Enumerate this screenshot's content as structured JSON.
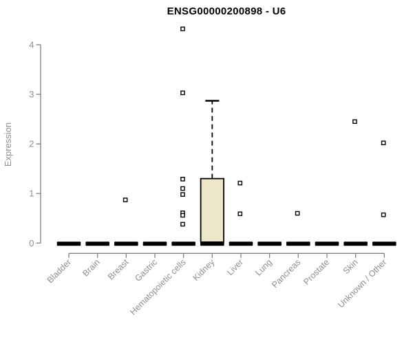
{
  "title": "ENSG00000200898 - U6",
  "colors": {
    "background": "#ffffff",
    "title_text": "#000000",
    "axis_line": "#808080",
    "label_text": "#8e8e8e",
    "box_fill": "#ece7c8",
    "box_stroke": "#000000",
    "median_bar": "#000000",
    "marker_stroke": "#000000",
    "marker_fill": "#ffffff"
  },
  "chart_data": {
    "type": "boxplot",
    "title": "ENSG00000200898 - U6",
    "xlabel": "",
    "ylabel": "Expression",
    "ylim": [
      0,
      4.4
    ],
    "yticks": [
      0,
      1,
      2,
      3,
      4
    ],
    "grid": false,
    "legend": "none",
    "marker": "open-square",
    "categories": [
      "Bladder",
      "Brain",
      "Breast",
      "Gastric",
      "Hematopoietic cells",
      "Kidney",
      "Liver",
      "Lung",
      "Pancreas",
      "Prostate",
      "Skin",
      "Unknown / Other"
    ],
    "boxes": [
      {
        "category": "Bladder",
        "median": 0,
        "q1": 0,
        "q3": 0,
        "whisker_low": 0,
        "whisker_high": 0,
        "outliers": []
      },
      {
        "category": "Brain",
        "median": 0,
        "q1": 0,
        "q3": 0,
        "whisker_low": 0,
        "whisker_high": 0,
        "outliers": []
      },
      {
        "category": "Breast",
        "median": 0,
        "q1": 0,
        "q3": 0,
        "whisker_low": 0,
        "whisker_high": 0,
        "outliers": [
          0.87
        ]
      },
      {
        "category": "Gastric",
        "median": 0,
        "q1": 0,
        "q3": 0,
        "whisker_low": 0,
        "whisker_high": 0,
        "outliers": []
      },
      {
        "category": "Hematopoietic cells",
        "median": 0,
        "q1": 0,
        "q3": 0,
        "whisker_low": 0,
        "whisker_high": 0,
        "outliers": [
          4.32,
          3.03,
          1.29,
          1.1,
          0.98,
          0.61,
          0.56,
          0.38
        ]
      },
      {
        "category": "Kidney",
        "median": 0,
        "q1": 0,
        "q3": 1.3,
        "whisker_low": 0,
        "whisker_high": 2.87,
        "outliers": []
      },
      {
        "category": "Liver",
        "median": 0,
        "q1": 0,
        "q3": 0,
        "whisker_low": 0,
        "whisker_high": 0,
        "outliers": [
          1.21,
          0.59
        ]
      },
      {
        "category": "Lung",
        "median": 0,
        "q1": 0,
        "q3": 0,
        "whisker_low": 0,
        "whisker_high": 0,
        "outliers": []
      },
      {
        "category": "Pancreas",
        "median": 0,
        "q1": 0,
        "q3": 0,
        "whisker_low": 0,
        "whisker_high": 0,
        "outliers": [
          0.6
        ]
      },
      {
        "category": "Prostate",
        "median": 0,
        "q1": 0,
        "q3": 0,
        "whisker_low": 0,
        "whisker_high": 0,
        "outliers": []
      },
      {
        "category": "Skin",
        "median": 0,
        "q1": 0,
        "q3": 0,
        "whisker_low": 0,
        "whisker_high": 0,
        "outliers": [
          2.45
        ]
      },
      {
        "category": "Unknown / Other",
        "median": 0,
        "q1": 0,
        "q3": 0,
        "whisker_low": 0,
        "whisker_high": 0,
        "outliers": [
          2.02,
          0.57
        ]
      }
    ]
  }
}
